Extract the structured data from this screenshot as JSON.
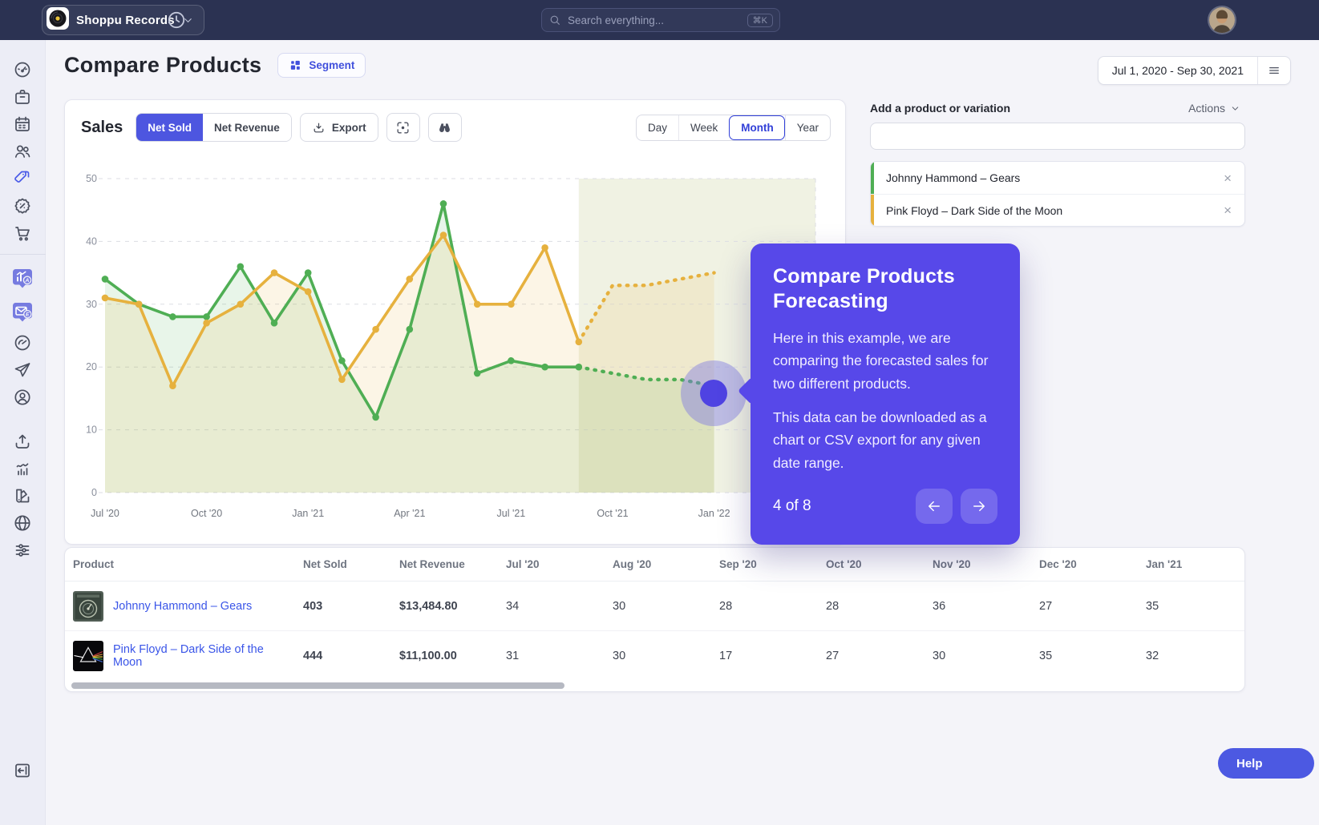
{
  "topbar": {
    "brand": "Shoppu Records",
    "search_placeholder": "Search everything...",
    "search_shortcut": "⌘K"
  },
  "sidebar": {
    "icons": [
      {
        "name": "gauge"
      },
      {
        "name": "package"
      },
      {
        "name": "calendar"
      },
      {
        "name": "users"
      },
      {
        "name": "tags",
        "accent": true
      },
      {
        "name": "badge-percent"
      },
      {
        "name": "cart"
      },
      {
        "name": "chart-bubble",
        "bubble": true
      },
      {
        "name": "mail-bubble",
        "bubble": true
      },
      {
        "name": "speedometer"
      },
      {
        "name": "paper-plane"
      },
      {
        "name": "user-circle"
      },
      {
        "name": "upload"
      },
      {
        "name": "chart-line"
      },
      {
        "name": "swatches"
      },
      {
        "name": "globe"
      },
      {
        "name": "sliders"
      }
    ],
    "bottom_icon": "panel-toggle"
  },
  "header": {
    "title": "Compare Products",
    "segment_label": "Segment"
  },
  "date_range": {
    "label": "Jul 1, 2020 - Sep 30, 2021"
  },
  "sales_card": {
    "title": "Sales",
    "metric_tabs": [
      "Net Sold",
      "Net Revenue"
    ],
    "active_metric": "Net Sold",
    "export_label": "Export",
    "period_tabs": [
      "Day",
      "Week",
      "Month",
      "Year"
    ],
    "active_period": "Month"
  },
  "chart_data": {
    "type": "line",
    "title": "Sales — Net Sold by Month",
    "x_labels": [
      "Jul '20",
      "Aug '20",
      "Sep '20",
      "Oct '20",
      "Nov '20",
      "Dec '20",
      "Jan '21",
      "Feb '21",
      "Mar '21",
      "Apr '21",
      "May '21",
      "Jun '21",
      "Jul '21",
      "Aug '21",
      "Sep '21",
      "Oct '21",
      "Nov '21",
      "Dec '21",
      "Jan '22"
    ],
    "tick_every": 3,
    "ylim": [
      0,
      50
    ],
    "yticks": [
      0,
      10,
      20,
      30,
      40,
      50
    ],
    "grid": "dashed-horizontal",
    "legend": "none",
    "forecast_start_index": 14,
    "series": [
      {
        "name": "Johnny Hammond – Gears",
        "color": "#4fae54",
        "fill": "rgba(79,174,84,0.13)",
        "values": [
          34,
          30,
          28,
          28,
          36,
          27,
          35,
          21,
          12,
          26,
          46,
          19,
          21,
          20,
          20
        ],
        "forecast": [
          19,
          18,
          18,
          17
        ]
      },
      {
        "name": "Pink Floyd – Dark Side of the Moon",
        "color": "#e6b13e",
        "fill": "rgba(230,177,62,0.13)",
        "values": [
          31,
          30,
          17,
          27,
          30,
          35,
          32,
          18,
          26,
          34,
          41,
          30,
          30,
          39,
          24
        ],
        "forecast": [
          33,
          33,
          34,
          35
        ]
      }
    ],
    "forecast_band_color": "rgba(156,171,64,0.15)"
  },
  "right_panel": {
    "label": "Add a product or variation",
    "actions_label": "Actions",
    "input_value": "",
    "products": [
      {
        "name": "Johnny Hammond – Gears",
        "color": "#4fae54"
      },
      {
        "name": "Pink Floyd – Dark Side of the Moon",
        "color": "#e6b13e"
      }
    ]
  },
  "tour_tooltip": {
    "title": "Compare Products Forecasting",
    "paragraphs": [
      "Here in this example, we are comparing the forecasted sales for two different products.",
      "This data can be downloaded as a chart or CSV export for any given date range."
    ],
    "step": "4 of 8"
  },
  "table": {
    "columns": [
      "Product",
      "Net Sold",
      "Net Revenue",
      "Jul '20",
      "Aug '20",
      "Sep '20",
      "Oct '20",
      "Nov '20",
      "Dec '20",
      "Jan '21"
    ],
    "rows": [
      {
        "product": "Johnny Hammond – Gears",
        "art": "gears",
        "net_sold": "403",
        "net_revenue": "$13,484.80",
        "months": [
          "34",
          "30",
          "28",
          "28",
          "36",
          "27",
          "35"
        ]
      },
      {
        "product": "Pink Floyd – Dark Side of the Moon",
        "art": "dsotm",
        "net_sold": "444",
        "net_revenue": "$11,100.00",
        "months": [
          "31",
          "30",
          "17",
          "27",
          "30",
          "35",
          "32"
        ]
      }
    ]
  },
  "help_label": "Help"
}
